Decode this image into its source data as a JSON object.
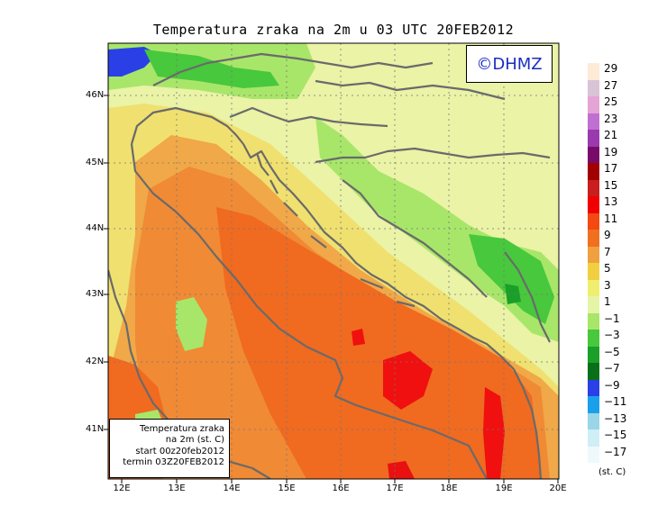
{
  "title": "Temperatura zraka na 2m u 03 UTC 20FEB2012",
  "logo": "©DHMZ",
  "infobox": {
    "line1": "Temperatura zraka",
    "line2": "na 2m (st. C)",
    "line3": "start 00z20feb2012",
    "line4": "termin 03Z20FEB2012"
  },
  "lat_labels": [
    "46N",
    "45N",
    "44N",
    "43N",
    "42N",
    "41N"
  ],
  "lon_labels": [
    "12E",
    "13E",
    "14E",
    "15E",
    "16E",
    "17E",
    "18E",
    "19E",
    "20E"
  ],
  "legend": {
    "labels": [
      "29",
      "27",
      "25",
      "23",
      "21",
      "19",
      "17",
      "15",
      "13",
      "11",
      "9",
      "7",
      "5",
      "3",
      "1",
      "−1",
      "−3",
      "−5",
      "−7",
      "−9",
      "−11",
      "−13",
      "−15",
      "−17"
    ],
    "colors": [
      "#fdebd8",
      "#d8c4d6",
      "#e4a4d6",
      "#c070d0",
      "#9a3aae",
      "#7a0a6a",
      "#a00000",
      "#c81e1e",
      "#f00000",
      "#f24a10",
      "#f07020",
      "#f0a040",
      "#f0d040",
      "#f0ee70",
      "#e6f4a8",
      "#a8e66a",
      "#48c83c",
      "#1aa028",
      "#087018",
      "#2a40e6",
      "#1aa0ea",
      "#98d6e8",
      "#d0eef6",
      "#eef9fc"
    ],
    "unit": "(st. C)"
  }
}
